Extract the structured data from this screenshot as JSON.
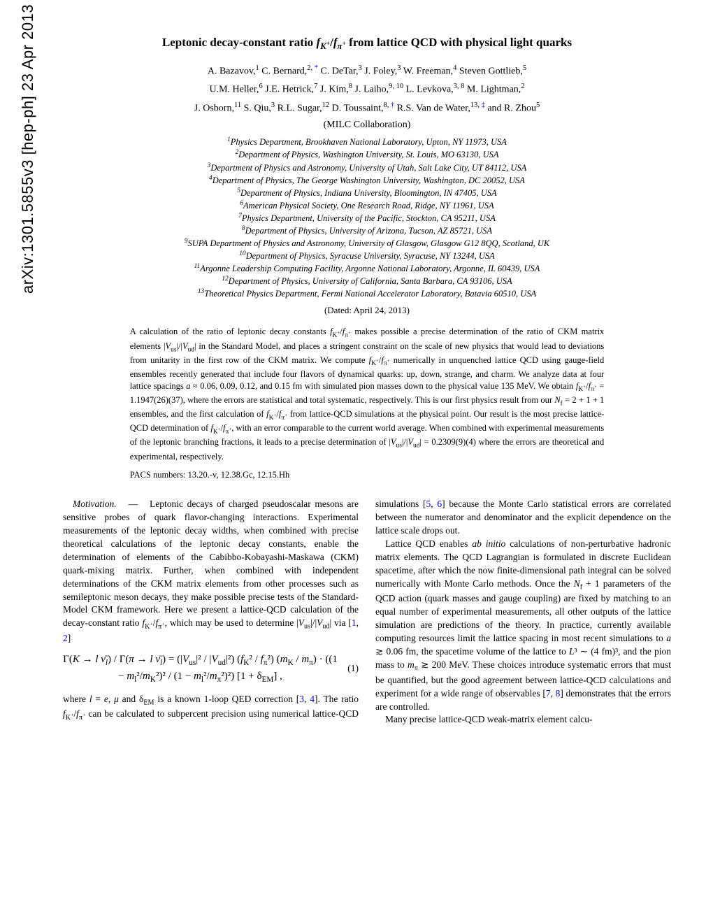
{
  "arxiv": "arXiv:1301.5855v3  [hep-ph]  23 Apr 2013",
  "title_html": "Leptonic decay-constant ratio <i>f</i><sub><i>K</i><sup>+</sup></sub>/<i>f</i><sub><i>π</i><sup>+</sup></sub> from lattice QCD with physical light quarks",
  "authors_line1_html": "A. Bazavov,<sup>1</sup> C. Bernard,<sup>2, <span class='link-sup'>*</span></sup> C. DeTar,<sup>3</sup> J. Foley,<sup>3</sup> W. Freeman,<sup>4</sup> Steven Gottlieb,<sup>5</sup>",
  "authors_line2_html": "U.M. Heller,<sup>6</sup> J.E. Hetrick,<sup>7</sup> J. Kim,<sup>8</sup> J. Laiho,<sup>9, 10</sup> L. Levkova,<sup>3, 8</sup> M. Lightman,<sup>2</sup>",
  "authors_line3_html": "J. Osborn,<sup>11</sup> S. Qiu,<sup>3</sup> R.L. Sugar,<sup>12</sup> D. Toussaint,<sup>8, <span class='link-sup'>†</span></sup> R.S. Van de Water,<sup>13, <span class='link-sup'>‡</span></sup> and R. Zhou<sup>5</sup>",
  "collab": "(MILC Collaboration)",
  "affiliations": [
    "<sup>1</sup>Physics Department, Brookhaven National Laboratory, Upton, NY 11973, USA",
    "<sup>2</sup>Department of Physics, Washington University, St. Louis, MO 63130, USA",
    "<sup>3</sup>Department of Physics and Astronomy, University of Utah, Salt Lake City, UT 84112, USA",
    "<sup>4</sup>Department of Physics, The George Washington University, Washington, DC 20052, USA",
    "<sup>5</sup>Department of Physics, Indiana University, Bloomington, IN 47405, USA",
    "<sup>6</sup>American Physical Society, One Research Road, Ridge, NY 11961, USA",
    "<sup>7</sup>Physics Department, University of the Pacific, Stockton, CA 95211, USA",
    "<sup>8</sup>Department of Physics, University of Arizona, Tucson, AZ 85721, USA",
    "<sup>9</sup>SUPA Department of Physics and Astronomy, University of Glasgow, Glasgow G12 8QQ, Scotland, UK",
    "<sup>10</sup>Department of Physics, Syracuse University, Syracuse, NY 13244, USA",
    "<sup>11</sup>Argonne Leadership Computing Facility, Argonne National Laboratory, Argonne, IL 60439, USA",
    "<sup>12</sup>Department of Physics, University of California, Santa Barbara, CA 93106, USA",
    "<sup>13</sup>Theoretical Physics Department, Fermi National Accelerator Laboratory, Batavia 60510, USA"
  ],
  "dated": "(Dated: April 24, 2013)",
  "abstract_html": "A calculation of the ratio of leptonic decay constants <i>f</i><sub>K<sup>+</sup></sub>/<i>f</i><sub>π<sup>+</sup></sub> makes possible a precise determination of the ratio of CKM matrix elements |<i>V</i><sub>us</sub>|/|<i>V</i><sub>ud</sub>| in the Standard Model, and places a stringent constraint on the scale of new physics that would lead to deviations from unitarity in the first row of the CKM matrix. We compute <i>f</i><sub>K<sup>+</sup></sub>/<i>f</i><sub>π<sup>+</sup></sub> numerically in unquenched lattice QCD using gauge-field ensembles recently generated that include four flavors of dynamical quarks: up, down, strange, and charm. We analyze data at four lattice spacings <i>a</i> ≈ 0.06, 0.09, 0.12, and 0.15 fm with simulated pion masses down to the physical value 135 MeV. We obtain <i>f</i><sub>K<sup>+</sup></sub>/<i>f</i><sub>π<sup>+</sup></sub> = 1.1947(26)(37), where the errors are statistical and total systematic, respectively. This is our first physics result from our <i>N</i><sub>f</sub> = 2 + 1 + 1 ensembles, and the first calculation of <i>f</i><sub>K<sup>+</sup></sub>/<i>f</i><sub>π<sup>+</sup></sub> from lattice-QCD simulations at the physical point. Our result is the most precise lattice-QCD determination of <i>f</i><sub>K<sup>+</sup></sub>/<i>f</i><sub>π<sup>+</sup></sub>, with an error comparable to the current world average. When combined with experimental measurements of the leptonic branching fractions, it leads to a precise determination of |<i>V</i><sub>us</sub>|/|<i>V</i><sub>ud</sub>| = 0.2309(9)(4) where the errors are theoretical and experimental, respectively.",
  "pacs": "PACS numbers: 13.20.-v, 12.38.Gc, 12.15.Hh",
  "body": {
    "p1_html": "<span class='section-head'>Motivation.</span> &nbsp; — &nbsp; Leptonic decays of charged pseudoscalar mesons are sensitive probes of quark flavor-changing interactions. Experimental measurements of the leptonic decay widths, when combined with precise theoretical calculations of the leptonic decay constants, enable the determination of elements of the Cabibbo-Kobayashi-Maskawa (CKM) quark-mixing matrix. Further, when combined with independent determinations of the CKM matrix elements from other processes such as semileptonic meson decays, they make possible precise tests of the Standard-Model CKM framework. Here we present a lattice-QCD calculation of the decay-constant ratio <i>f</i><sub>K<sup>+</sup></sub>/<i>f</i><sub>π<sup>+</sup></sub>, which may be used to determine |<i>V</i><sub>us</sub>|/|<i>V</i><sub>ud</sub>| via [<span class='cite'>1</span>, <span class='cite'>2</span>]",
    "eq1_html": "Γ(<i>K</i> → <i>l ν̄<sub>l</sub></i>) / Γ(<i>π</i> → <i>l ν̄<sub>l</sub></i>) = (|<i>V</i><sub>us</sub>|² / |<i>V</i><sub>ud</sub>|²) (<i>f</i><sub>K</sub>² / <i>f</i><sub>π</sub>²) (<i>m</i><sub>K</sub> / <i>m</i><sub>π</sub>) · ((1 − <i>m</i><sub>l</sub>²/<i>m</i><sub>K</sub>²)² / (1 − <i>m</i><sub>l</sub>²/<i>m</i><sub>π</sub>²)²) [1 + δ<sub>EM</sub>] ,",
    "eq1_num": "(1)",
    "p2_html": "where <i>l</i> = <i>e</i>, <i>μ</i> and δ<sub>EM</sub> is a known 1-loop QED correction [<span class='cite'>3</span>, <span class='cite'>4</span>]. The ratio <i>f</i><sub>K<sup>+</sup></sub>/<i>f</i><sub>π<sup>+</sup></sub> can be calculated to subpercent precision using numerical lattice-QCD simulations [<span class='cite'>5</span>, <span class='cite'>6</span>] because the Monte Carlo statistical errors are correlated between the numerator and denominator and the explicit dependence on the lattice scale drops out.",
    "p3_html": "Lattice QCD enables <i>ab initio</i> calculations of non-perturbative hadronic matrix elements. The QCD Lagrangian is formulated in discrete Euclidean spacetime, after which the now finite-dimensional path integral can be solved numerically with Monte Carlo methods. Once the <i>N</i><sub>f</sub> + 1 parameters of the QCD action (quark masses and gauge coupling) are fixed by matching to an equal number of experimental measurements, all other outputs of the lattice simulation are predictions of the theory. In practice, currently available computing resources limit the lattice spacing in most recent simulations to <i>a</i> ≳ 0.06 fm, the spacetime volume of the lattice to <i>L</i>³ ∼ (4 fm)³, and the pion mass to <i>m</i><sub>π</sub> ≳ 200 MeV. These choices introduce systematic errors that must be quantified, but the good agreement between lattice-QCD calculations and experiment for a wide range of observables [<span class='cite'>7</span>, <span class='cite'>8</span>] demonstrates that the errors are controlled.",
    "p4_html": "Many precise lattice-QCD weak-matrix element calcu-"
  }
}
